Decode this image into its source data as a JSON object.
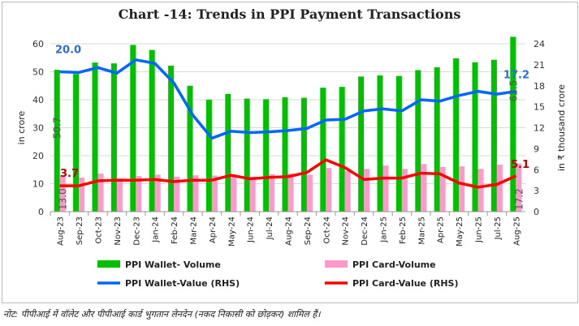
{
  "chart_data": {
    "type": "bar+line",
    "title": "Chart -14: Trends in PPI Payment Transactions",
    "ylabel": "in crore",
    "y2label": "in ₹ thousand crore",
    "ylim": [
      0,
      60
    ],
    "yticks": [
      0,
      10,
      20,
      30,
      40,
      50,
      60
    ],
    "y2lim": [
      0,
      24
    ],
    "y2ticks": [
      0,
      3,
      6,
      9,
      12,
      15,
      18,
      21,
      24
    ],
    "grid": true,
    "legend_placement": "bottom",
    "categories": [
      "Aug-23",
      "Sep-23",
      "Oct-23",
      "Nov-23",
      "Dec-23",
      "Jan-24",
      "Feb-24",
      "Mar-24",
      "Apr-24",
      "May-24",
      "Jun-24",
      "Jul-24",
      "Aug-24",
      "Sep-24",
      "Oct-24",
      "Nov-24",
      "Dec-24",
      "Jan-25",
      "Feb-25",
      "Mar-25",
      "Apr-25",
      "May-25",
      "Jun-25",
      "Jul-25",
      "Aug-25"
    ],
    "series": [
      {
        "name": "PPI Wallet- Volume",
        "type": "bar",
        "axis": "left",
        "color": "#00c000",
        "values": [
          50.7,
          49.2,
          53.3,
          53.0,
          59.6,
          57.8,
          52.2,
          45.0,
          40.0,
          42.1,
          40.4,
          40.2,
          40.9,
          40.7,
          44.3,
          44.6,
          48.3,
          48.7,
          48.5,
          50.6,
          51.6,
          54.8,
          53.4,
          54.3,
          62.5
        ],
        "labels": {
          "first": "50.7",
          "last": "62.5"
        }
      },
      {
        "name": "PPI Card-Volume",
        "type": "bar",
        "axis": "left",
        "color": "#ff99cc",
        "values": [
          13.0,
          12.2,
          13.6,
          11.9,
          12.7,
          13.2,
          12.5,
          13.0,
          12.9,
          12.6,
          12.5,
          13.4,
          13.6,
          13.2,
          15.6,
          14.5,
          15.3,
          16.5,
          15.3,
          17.0,
          16.0,
          16.2,
          15.3,
          16.8,
          17.2
        ],
        "labels": {
          "first": "13.0",
          "last": "17.2"
        }
      },
      {
        "name": "PPI Wallet-Value (RHS)",
        "type": "line",
        "axis": "right",
        "color": "#0066ff",
        "values": [
          20.0,
          19.9,
          20.6,
          19.8,
          21.7,
          21.2,
          18.4,
          13.8,
          10.5,
          11.5,
          11.3,
          11.4,
          11.6,
          11.9,
          13.1,
          13.2,
          14.4,
          14.7,
          14.4,
          16.0,
          15.8,
          16.6,
          17.2,
          16.8,
          17.2
        ],
        "labels": {
          "first": "20.0",
          "last": "17.2"
        }
      },
      {
        "name": "PPI Card-Value (RHS)",
        "type": "line",
        "axis": "right",
        "color": "#ff0000",
        "values": [
          3.7,
          3.7,
          4.4,
          4.5,
          4.5,
          4.6,
          4.3,
          4.5,
          4.5,
          5.2,
          4.7,
          4.9,
          5.0,
          5.6,
          7.4,
          6.3,
          4.6,
          4.8,
          4.8,
          5.5,
          5.4,
          4.1,
          3.5,
          3.9,
          5.1
        ],
        "labels": {
          "first": "3.7",
          "last": "5.1"
        }
      }
    ]
  },
  "note": "नोट: पीपीआई में वॉलेट और पीपीआई कार्ड भुगतान लेनदेन (नकद निकासी को छोड़कर) शामिल हैं।"
}
